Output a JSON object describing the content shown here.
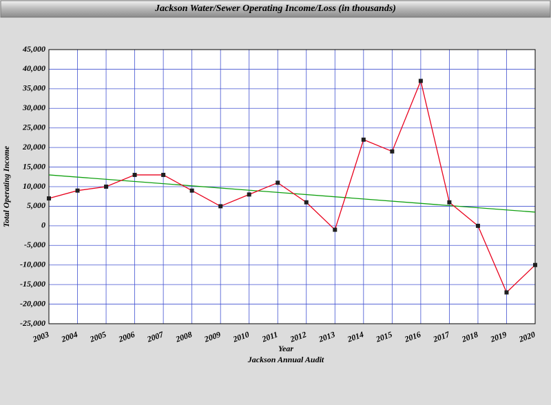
{
  "chart_data": {
    "type": "line",
    "title": "Jackson Water/Sewer Operating Income/Loss (in thousands)",
    "x_label": "Year",
    "x_label_2": "Jackson Annual Audit",
    "y_label": "Total Operating Income",
    "x": [
      2003,
      2004,
      2005,
      2006,
      2007,
      2008,
      2009,
      2010,
      2011,
      2012,
      2013,
      2014,
      2015,
      2016,
      2017,
      2018,
      2019,
      2020
    ],
    "series": [
      {
        "color": "#e8001c",
        "marker_color": "#202020",
        "values": [
          7000,
          9000,
          10000,
          13000,
          13000,
          9000,
          5000,
          8000,
          11000,
          6000,
          -1000,
          22000,
          19000,
          37000,
          6000,
          0,
          -17000,
          -10000
        ]
      }
    ],
    "trendline": {
      "color": "#10a010",
      "x": [
        2003,
        2020
      ],
      "values": [
        13000,
        3500
      ]
    },
    "xlim": [
      2003,
      2020
    ],
    "xticks": [
      2003,
      2004,
      2005,
      2006,
      2007,
      2008,
      2009,
      2010,
      2011,
      2012,
      2013,
      2014,
      2015,
      2016,
      2017,
      2018,
      2019,
      2020
    ],
    "ylim": [
      -25000,
      45000
    ],
    "yticks": [
      {
        "value": -25000,
        "label": "-25,000"
      },
      {
        "value": -20000,
        "label": "-20,000"
      },
      {
        "value": -15000,
        "label": "-15,000"
      },
      {
        "value": -10000,
        "label": "-10,000"
      },
      {
        "value": -5000,
        "label": "-5,000"
      },
      0,
      {
        "value": 5000,
        "label": "5,000"
      },
      {
        "value": 10000,
        "label": "10,000"
      },
      {
        "value": 15000,
        "label": "15,000"
      },
      {
        "value": 20000,
        "label": "20,000"
      },
      {
        "value": 25000,
        "label": "25,000"
      },
      {
        "value": 30000,
        "label": "30,000"
      },
      {
        "value": 35000,
        "label": "35,000"
      },
      {
        "value": 40000,
        "label": "40,000"
      },
      {
        "value": 45000,
        "label": "45,000"
      }
    ],
    "grid": true,
    "grid_color": "#4050d0"
  }
}
